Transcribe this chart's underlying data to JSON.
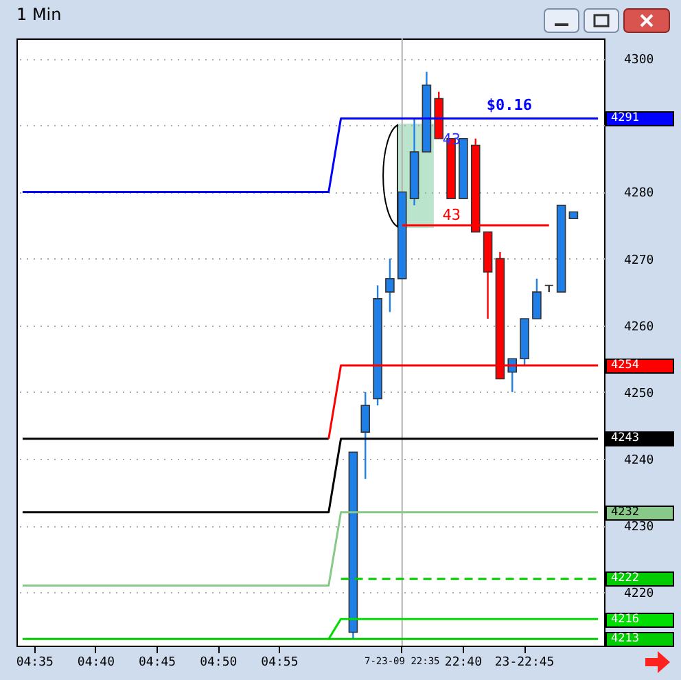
{
  "chart_data": {
    "type": "candlestick",
    "title": "1 Min",
    "categories": [
      null,
      "04:35",
      null,
      null,
      null,
      null,
      "04:40",
      null,
      null,
      null,
      null,
      "04:45",
      null,
      null,
      null,
      null,
      "04:50",
      null,
      null,
      null,
      null,
      "04:55",
      null,
      null,
      null,
      null,
      null,
      null,
      null,
      null,
      null,
      "7-23-09 22:35",
      null,
      null,
      null,
      null,
      "22:40",
      null,
      null,
      null,
      null,
      "23-22:45",
      null,
      null,
      null,
      null,
      null,
      null
    ],
    "ohlc": [
      null,
      null,
      null,
      null,
      null,
      null,
      null,
      null,
      null,
      null,
      null,
      null,
      null,
      null,
      null,
      null,
      null,
      null,
      null,
      null,
      null,
      null,
      null,
      null,
      null,
      null,
      null,
      [
        4214,
        4241,
        4213,
        4241
      ],
      [
        4244,
        4250,
        4237,
        4248
      ],
      [
        4249,
        4266,
        4248,
        4264
      ],
      [
        4265,
        4270,
        4262,
        4267
      ],
      [
        4267,
        4280,
        4267,
        4280
      ],
      [
        4279,
        4291,
        4278,
        4286
      ],
      [
        4286,
        4298,
        4286,
        4296
      ],
      [
        4294,
        4295,
        4288,
        4288
      ],
      [
        4288,
        4288,
        4279,
        4279
      ],
      [
        4279,
        4288,
        4279,
        4288
      ],
      [
        4287,
        4288,
        4274,
        4274
      ],
      [
        4274,
        4274,
        4261,
        4268
      ],
      [
        4270,
        4271,
        4252,
        4252
      ],
      [
        4253,
        4255,
        4250,
        4255
      ],
      [
        4255,
        4261,
        4254,
        4261
      ],
      [
        4261,
        4267,
        4261,
        4265
      ],
      [
        4266,
        4266,
        4265,
        4266
      ],
      [
        4265,
        4278,
        4265,
        4278
      ],
      [
        4276,
        4277,
        4276,
        4277
      ],
      null,
      null
    ],
    "colors": [
      null,
      null,
      null,
      null,
      null,
      null,
      null,
      null,
      null,
      null,
      null,
      null,
      null,
      null,
      null,
      null,
      null,
      null,
      null,
      null,
      null,
      null,
      null,
      null,
      null,
      null,
      null,
      "#1e7fe8",
      "#1e7fe8",
      "#1e7fe8",
      "#1e7fe8",
      "#1e7fe8",
      "#1e7fe8",
      "#1e7fe8",
      "#ff0000",
      "#ff0000",
      "#1e7fe8",
      "#ff0000",
      "#ff0000",
      "#ff0000",
      "#1e7fe8",
      "#1e7fe8",
      "#1e7fe8",
      "#333333",
      "#1e7fe8",
      "#1e7fe8",
      null,
      null
    ],
    "series": [
      {
        "type": "line",
        "color": "#0000ff",
        "values": [
          4280,
          4280,
          4280,
          4280,
          4280,
          4280,
          4280,
          4280,
          4280,
          4280,
          4280,
          4280,
          4280,
          4280,
          4280,
          4280,
          4280,
          4280,
          4280,
          4280,
          4280,
          4280,
          4280,
          4280,
          4280,
          4280,
          4291,
          4291,
          4291,
          4291,
          4291,
          4291,
          4291,
          4291,
          4291,
          4291,
          4291,
          4291,
          4291,
          4291,
          4291,
          4291,
          4291,
          4291,
          4291,
          4291,
          4291,
          4291
        ],
        "value_labels": [
          null,
          null,
          null,
          null,
          null,
          null,
          null,
          null,
          null,
          null,
          null,
          null,
          null,
          null,
          null,
          null,
          null,
          null,
          null,
          null,
          null,
          null,
          null,
          null,
          null,
          null,
          null,
          null,
          null,
          null,
          null,
          null,
          null,
          null,
          null,
          null,
          null,
          null,
          null,
          null,
          null,
          null,
          null,
          null,
          null,
          null,
          null,
          "4291"
        ]
      },
      {
        "type": "line",
        "color": "#000000",
        "values": [
          4243,
          4243,
          4243,
          4243,
          4243,
          4243,
          4243,
          4243,
          4243,
          4243,
          4243,
          4243,
          4243,
          4243,
          4243,
          4243,
          4243,
          4243,
          4243,
          4243,
          4243,
          4243,
          4243,
          4243,
          4243,
          4243,
          null,
          null,
          null,
          null,
          null,
          null,
          null,
          null,
          null,
          null,
          null,
          null,
          null,
          null,
          null,
          null,
          null,
          null,
          null,
          null,
          null,
          null
        ]
      },
      {
        "type": "line",
        "color": "#ff0000",
        "values": [
          null,
          null,
          null,
          null,
          null,
          null,
          null,
          null,
          null,
          null,
          null,
          null,
          null,
          null,
          null,
          null,
          null,
          null,
          null,
          null,
          null,
          null,
          null,
          null,
          null,
          4243,
          4254,
          4254,
          4254,
          4254,
          4254,
          4254,
          4254,
          4254,
          4254,
          4254,
          4254,
          4254,
          4254,
          4254,
          4254,
          4254,
          4254,
          4254,
          4254,
          4254,
          4254,
          4254
        ],
        "value_labels": [
          null,
          null,
          null,
          null,
          null,
          null,
          null,
          null,
          null,
          null,
          null,
          null,
          null,
          null,
          null,
          null,
          null,
          null,
          null,
          null,
          null,
          null,
          null,
          null,
          null,
          null,
          null,
          null,
          null,
          null,
          null,
          null,
          null,
          null,
          null,
          null,
          null,
          null,
          null,
          null,
          null,
          null,
          null,
          null,
          null,
          null,
          null,
          "4254"
        ]
      },
      {
        "type": "line",
        "color": "#000000",
        "values": [
          4232,
          4232,
          4232,
          4232,
          4232,
          4232,
          4232,
          4232,
          4232,
          4232,
          4232,
          4232,
          4232,
          4232,
          4232,
          4232,
          4232,
          4232,
          4232,
          4232,
          4232,
          4232,
          4232,
          4232,
          4232,
          4232,
          4243,
          4243,
          4243,
          4243,
          4243,
          4243,
          4243,
          4243,
          4243,
          4243,
          4243,
          4243,
          4243,
          4243,
          4243,
          4243,
          4243,
          4243,
          4243,
          4243,
          4243,
          4243
        ],
        "value_labels": [
          null,
          null,
          null,
          null,
          null,
          null,
          null,
          null,
          null,
          null,
          null,
          null,
          null,
          null,
          null,
          null,
          null,
          null,
          null,
          null,
          null,
          null,
          null,
          null,
          null,
          null,
          null,
          null,
          null,
          null,
          null,
          null,
          null,
          null,
          null,
          null,
          null,
          null,
          null,
          null,
          null,
          null,
          null,
          null,
          null,
          null,
          null,
          "4243"
        ]
      },
      {
        "type": "line",
        "color": "#88c888",
        "values": [
          4221,
          4221,
          4221,
          4221,
          4221,
          4221,
          4221,
          4221,
          4221,
          4221,
          4221,
          4221,
          4221,
          4221,
          4221,
          4221,
          4221,
          4221,
          4221,
          4221,
          4221,
          4221,
          4221,
          4221,
          4221,
          4221,
          4232,
          4232,
          4232,
          4232,
          4232,
          4232,
          4232,
          4232,
          4232,
          4232,
          4232,
          4232,
          4232,
          4232,
          4232,
          4232,
          4232,
          4232,
          4232,
          4232,
          4232,
          4232
        ],
        "value_labels": [
          null,
          null,
          null,
          null,
          null,
          null,
          null,
          null,
          null,
          null,
          null,
          null,
          null,
          null,
          null,
          null,
          null,
          null,
          null,
          null,
          null,
          null,
          null,
          null,
          null,
          null,
          null,
          null,
          null,
          null,
          null,
          null,
          null,
          null,
          null,
          null,
          null,
          null,
          null,
          null,
          null,
          null,
          null,
          null,
          null,
          null,
          null,
          "4232"
        ]
      },
      {
        "type": "line",
        "color": "#00cc00",
        "line_style": "dashed",
        "values": [
          null,
          null,
          null,
          null,
          null,
          null,
          null,
          null,
          null,
          null,
          null,
          null,
          null,
          null,
          null,
          null,
          null,
          null,
          null,
          null,
          null,
          null,
          null,
          null,
          null,
          null,
          4222,
          4222,
          4222,
          4222,
          4222,
          4222,
          4222,
          4222,
          4222,
          4222,
          4222,
          4222,
          4222,
          4222,
          4222,
          4222,
          4222,
          4222,
          4222,
          4222,
          4222,
          4222
        ],
        "value_labels": [
          null,
          null,
          null,
          null,
          null,
          null,
          null,
          null,
          null,
          null,
          null,
          null,
          null,
          null,
          null,
          null,
          null,
          null,
          null,
          null,
          null,
          null,
          null,
          null,
          null,
          null,
          null,
          null,
          null,
          null,
          null,
          null,
          null,
          null,
          null,
          null,
          null,
          null,
          null,
          null,
          null,
          null,
          null,
          null,
          null,
          null,
          null,
          "4222"
        ]
      },
      {
        "type": "line",
        "color": "#00dd00",
        "values": [
          null,
          null,
          null,
          null,
          null,
          null,
          null,
          null,
          null,
          null,
          null,
          null,
          null,
          null,
          null,
          null,
          null,
          null,
          null,
          null,
          null,
          null,
          null,
          null,
          null,
          4213,
          4216,
          4216,
          4216,
          4216,
          4216,
          4216,
          4216,
          4216,
          4216,
          4216,
          4216,
          4216,
          4216,
          4216,
          4216,
          4216,
          4216,
          4216,
          4216,
          4216,
          4216,
          4216
        ],
        "value_labels": [
          null,
          null,
          null,
          null,
          null,
          null,
          null,
          null,
          null,
          null,
          null,
          null,
          null,
          null,
          null,
          null,
          null,
          null,
          null,
          null,
          null,
          null,
          null,
          null,
          null,
          null,
          null,
          null,
          null,
          null,
          null,
          null,
          null,
          null,
          null,
          null,
          null,
          null,
          null,
          null,
          null,
          null,
          null,
          null,
          null,
          null,
          null,
          "4216"
        ]
      },
      {
        "type": "line",
        "color": "#00cc00",
        "values": [
          4213,
          4213,
          4213,
          4213,
          4213,
          4213,
          4213,
          4213,
          4213,
          4213,
          4213,
          4213,
          4213,
          4213,
          4213,
          4213,
          4213,
          4213,
          4213,
          4213,
          4213,
          4213,
          4213,
          4213,
          4213,
          4213,
          4213,
          4213,
          4213,
          4213,
          4213,
          4213,
          4213,
          4213,
          4213,
          4213,
          4213,
          4213,
          4213,
          4213,
          4213,
          4213,
          4213,
          4213,
          4213,
          4213,
          4213,
          4213
        ],
        "value_labels": [
          null,
          null,
          null,
          null,
          null,
          null,
          null,
          null,
          null,
          null,
          null,
          null,
          null,
          null,
          null,
          null,
          null,
          null,
          null,
          null,
          null,
          null,
          null,
          null,
          null,
          null,
          null,
          null,
          null,
          null,
          null,
          null,
          null,
          null,
          null,
          null,
          null,
          null,
          null,
          null,
          null,
          null,
          null,
          null,
          null,
          null,
          null,
          "4213"
        ]
      },
      {
        "type": "line",
        "color": "#ff0000",
        "values": [
          null,
          null,
          null,
          null,
          null,
          null,
          null,
          null,
          null,
          null,
          null,
          null,
          null,
          null,
          null,
          null,
          null,
          null,
          null,
          null,
          null,
          null,
          null,
          null,
          null,
          null,
          null,
          null,
          null,
          null,
          null,
          4275,
          4275,
          4275,
          4275,
          4275,
          4275,
          4275,
          4275,
          4275,
          4275,
          4275,
          4275,
          4275,
          null,
          null,
          null,
          null
        ]
      }
    ],
    "ref_lines": [
      {
        "axis": "x",
        "value": "7-23-09 22:35",
        "color": "#b0b0b0"
      }
    ],
    "ylim": [
      4212,
      4303
    ],
    "yticks": [
      4220,
      4230,
      4240,
      4250,
      4260,
      4270,
      4280,
      {
        "value": 4290,
        "label": null
      },
      4300
    ],
    "grid": true,
    "annotations": [
      {
        "text": "$0.16",
        "y": 4291
      },
      {
        "text": "43",
        "y": 4291
      },
      {
        "text": "43",
        "y": 4275
      }
    ]
  }
}
